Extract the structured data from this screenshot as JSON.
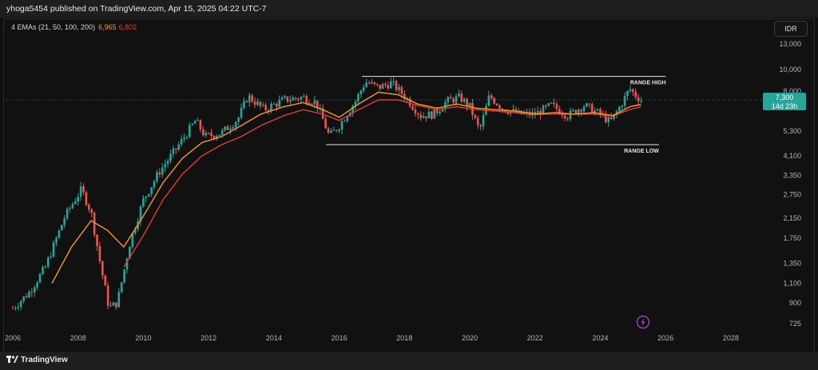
{
  "header": {
    "publisher_line": "yhoga5454 published on TradingView.com, Apr 15, 2025 04:22 UTC-7"
  },
  "legend": {
    "label": "4 EMAs (21, 50, 100, 200)",
    "ema_a": "6,965",
    "ema_b": "6,802"
  },
  "currency_button": "IDR",
  "price_tag": {
    "price": "7,300",
    "countdown": "14d 23h"
  },
  "footer": {
    "brand": "TradingView"
  },
  "colors": {
    "up": "#26a69a",
    "down": "#ef5350",
    "ema_fast": "#f59a23",
    "ema_slow": "#e53935",
    "accent": "#26a69a"
  },
  "icons": {
    "flash": "lightning-icon",
    "brand": "tradingview-logo-icon"
  },
  "chart_data": {
    "type": "candlestick",
    "scale": "log",
    "y_ticks": [
      "13,000",
      "10,000",
      "8,000",
      "7,300",
      "5,300",
      "4,100",
      "3,350",
      "2,750",
      "2,150",
      "1,750",
      "1,350",
      "1,100",
      "900",
      "725"
    ],
    "x_ticks": [
      "2006",
      "2008",
      "2010",
      "2012",
      "2014",
      "2016",
      "2018",
      "2020",
      "2022",
      "2024",
      "2026",
      "2028"
    ],
    "xlim": [
      2006,
      2029
    ],
    "annotations": [
      {
        "label": "RANGE HIGH",
        "value": 9300,
        "from": 2016.7,
        "to": 2026.0
      },
      {
        "label": "RANGE LOW",
        "value": 4600,
        "from": 2015.6,
        "to": 2025.8
      }
    ],
    "last_price": 7300,
    "price_path": [
      [
        2006.0,
        850
      ],
      [
        2006.5,
        1000
      ],
      [
        2007.0,
        1300
      ],
      [
        2007.6,
        2200
      ],
      [
        2008.1,
        2900
      ],
      [
        2008.4,
        2300
      ],
      [
        2008.7,
        1300
      ],
      [
        2008.95,
        850
      ],
      [
        2009.2,
        900
      ],
      [
        2009.6,
        1700
      ],
      [
        2010.0,
        2600
      ],
      [
        2010.5,
        3500
      ],
      [
        2011.0,
        4400
      ],
      [
        2011.6,
        5900
      ],
      [
        2011.9,
        5000
      ],
      [
        2012.4,
        5200
      ],
      [
        2012.9,
        6000
      ],
      [
        2013.2,
        7600
      ],
      [
        2013.7,
        6600
      ],
      [
        2014.3,
        7300
      ],
      [
        2014.9,
        7500
      ],
      [
        2015.3,
        7100
      ],
      [
        2015.7,
        5000
      ],
      [
        2016.0,
        5600
      ],
      [
        2016.5,
        7200
      ],
      [
        2016.8,
        8800
      ],
      [
        2017.2,
        8300
      ],
      [
        2017.6,
        8700
      ],
      [
        2018.0,
        7600
      ],
      [
        2018.5,
        6200
      ],
      [
        2018.9,
        6300
      ],
      [
        2019.3,
        7200
      ],
      [
        2019.7,
        7500
      ],
      [
        2020.0,
        6800
      ],
      [
        2020.3,
        5300
      ],
      [
        2020.6,
        7600
      ],
      [
        2021.0,
        6700
      ],
      [
        2021.5,
        6300
      ],
      [
        2022.0,
        6300
      ],
      [
        2022.5,
        6900
      ],
      [
        2023.0,
        6200
      ],
      [
        2023.5,
        6900
      ],
      [
        2024.0,
        6300
      ],
      [
        2024.3,
        5800
      ],
      [
        2024.6,
        6800
      ],
      [
        2024.9,
        8200
      ],
      [
        2025.1,
        7600
      ],
      [
        2025.25,
        7300
      ]
    ],
    "ema_fast_path": [
      [
        2007.2,
        1100
      ],
      [
        2007.8,
        1600
      ],
      [
        2008.4,
        2100
      ],
      [
        2008.9,
        1900
      ],
      [
        2009.4,
        1600
      ],
      [
        2010.0,
        2200
      ],
      [
        2010.6,
        3100
      ],
      [
        2011.2,
        4000
      ],
      [
        2011.8,
        4700
      ],
      [
        2012.4,
        5000
      ],
      [
        2013.0,
        5600
      ],
      [
        2013.6,
        6300
      ],
      [
        2014.3,
        6800
      ],
      [
        2014.9,
        7100
      ],
      [
        2015.5,
        6600
      ],
      [
        2016.0,
        6100
      ],
      [
        2016.6,
        7000
      ],
      [
        2017.2,
        7900
      ],
      [
        2017.8,
        7700
      ],
      [
        2018.4,
        7000
      ],
      [
        2019.0,
        6700
      ],
      [
        2019.6,
        7000
      ],
      [
        2020.2,
        6700
      ],
      [
        2020.8,
        6600
      ],
      [
        2021.4,
        6500
      ],
      [
        2022.0,
        6300
      ],
      [
        2022.6,
        6400
      ],
      [
        2023.2,
        6300
      ],
      [
        2023.8,
        6400
      ],
      [
        2024.4,
        6200
      ],
      [
        2024.9,
        6800
      ],
      [
        2025.25,
        6965
      ]
    ],
    "ema_slow_path": [
      [
        2009.4,
        1300
      ],
      [
        2010.0,
        1800
      ],
      [
        2010.6,
        2600
      ],
      [
        2011.2,
        3400
      ],
      [
        2011.8,
        4100
      ],
      [
        2012.4,
        4600
      ],
      [
        2013.0,
        5000
      ],
      [
        2013.6,
        5600
      ],
      [
        2014.3,
        6200
      ],
      [
        2014.9,
        6600
      ],
      [
        2015.5,
        6300
      ],
      [
        2016.0,
        5900
      ],
      [
        2016.6,
        6600
      ],
      [
        2017.2,
        7300
      ],
      [
        2017.8,
        7300
      ],
      [
        2018.4,
        6900
      ],
      [
        2019.0,
        6600
      ],
      [
        2019.6,
        6800
      ],
      [
        2020.2,
        6600
      ],
      [
        2020.8,
        6500
      ],
      [
        2021.4,
        6400
      ],
      [
        2022.0,
        6300
      ],
      [
        2022.6,
        6300
      ],
      [
        2023.2,
        6300
      ],
      [
        2023.8,
        6300
      ],
      [
        2024.4,
        6200
      ],
      [
        2024.9,
        6600
      ],
      [
        2025.25,
        6802
      ]
    ]
  }
}
